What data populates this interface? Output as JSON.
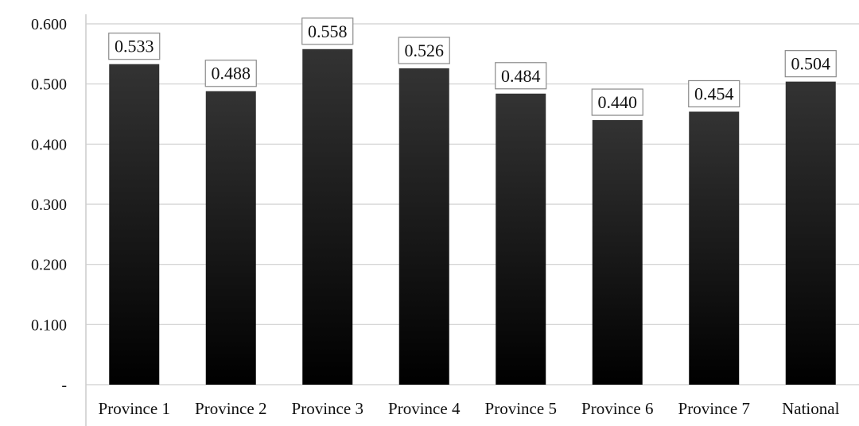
{
  "chart_data": {
    "type": "bar",
    "title": "",
    "xlabel": "",
    "ylabel": "",
    "categories": [
      "Province 1",
      "Province 2",
      "Province 3",
      "Province 4",
      "Province 5",
      "Province 6",
      "Province 7",
      "National"
    ],
    "values": [
      0.533,
      0.488,
      0.558,
      0.526,
      0.484,
      0.44,
      0.454,
      0.504
    ],
    "data_labels": [
      "0.533",
      "0.488",
      "0.558",
      "0.526",
      "0.484",
      "0.440",
      "0.454",
      "0.504"
    ],
    "ylim": [
      0,
      0.6
    ],
    "yticks": [
      0,
      0.1,
      0.2,
      0.3,
      0.4,
      0.5,
      0.6
    ],
    "ytick_labels": [
      "-",
      "0.100",
      "0.200",
      "0.300",
      "0.400",
      "0.500",
      "0.600"
    ],
    "grid": true,
    "legend": "none",
    "bar_fill": "gradient dark gray to black",
    "colors": {
      "bar_top": "#333333",
      "bar_bottom": "#000000",
      "grid": "#cfcfcf"
    }
  }
}
